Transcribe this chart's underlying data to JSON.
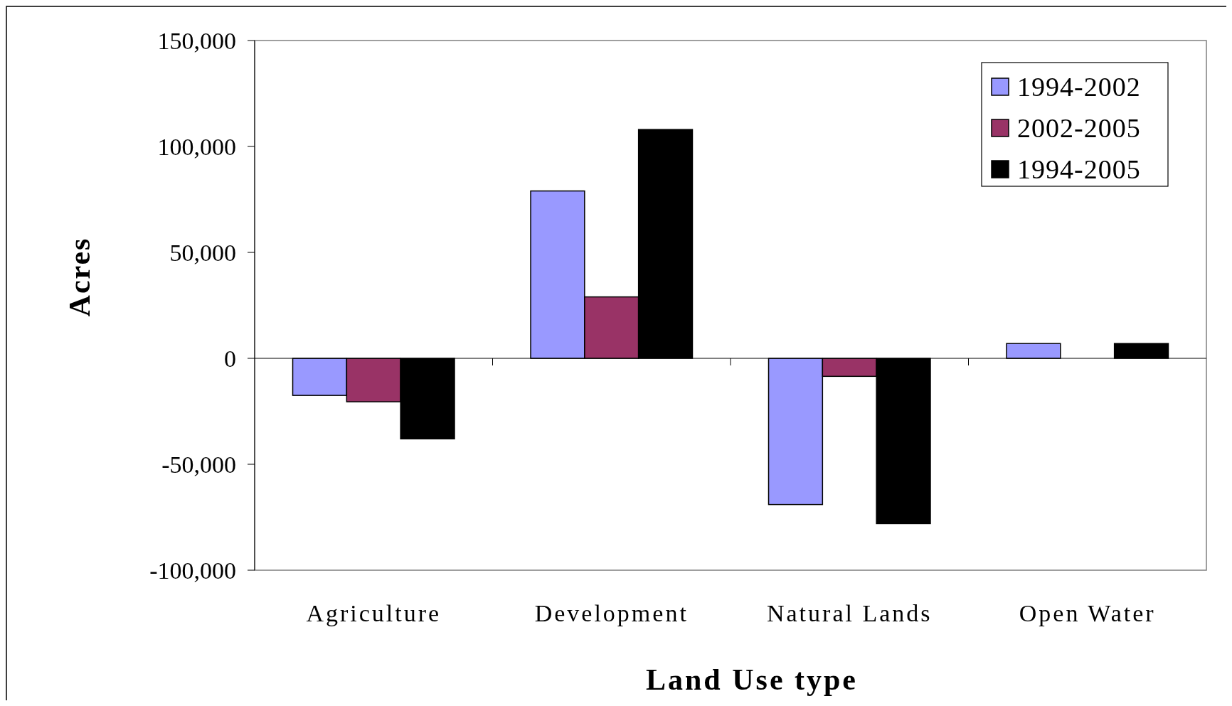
{
  "chart_data": {
    "type": "bar",
    "xlabel": "Land Use type",
    "ylabel": "Acres",
    "categories": [
      "Agriculture",
      "Development",
      "Natural Lands",
      "Open Water"
    ],
    "series": [
      {
        "name": "1994-2002",
        "color": "#9999ff",
        "values": [
          -17500,
          79000,
          -69000,
          7000
        ]
      },
      {
        "name": "2002-2005",
        "color": "#993366",
        "values": [
          -20500,
          29000,
          -8500,
          0
        ]
      },
      {
        "name": "1994-2005",
        "color": "#000000",
        "values": [
          -38000,
          108000,
          -78000,
          7000
        ]
      }
    ],
    "ylim": [
      -100000,
      150000
    ],
    "yticks": [
      {
        "value": -100000,
        "label": "-100,000"
      },
      {
        "value": -50000,
        "label": "-50,000"
      },
      0,
      {
        "value": 50000,
        "label": "50,000"
      },
      {
        "value": 100000,
        "label": "100,000"
      },
      {
        "value": 150000,
        "label": "150,000"
      }
    ],
    "legend": "top right"
  }
}
